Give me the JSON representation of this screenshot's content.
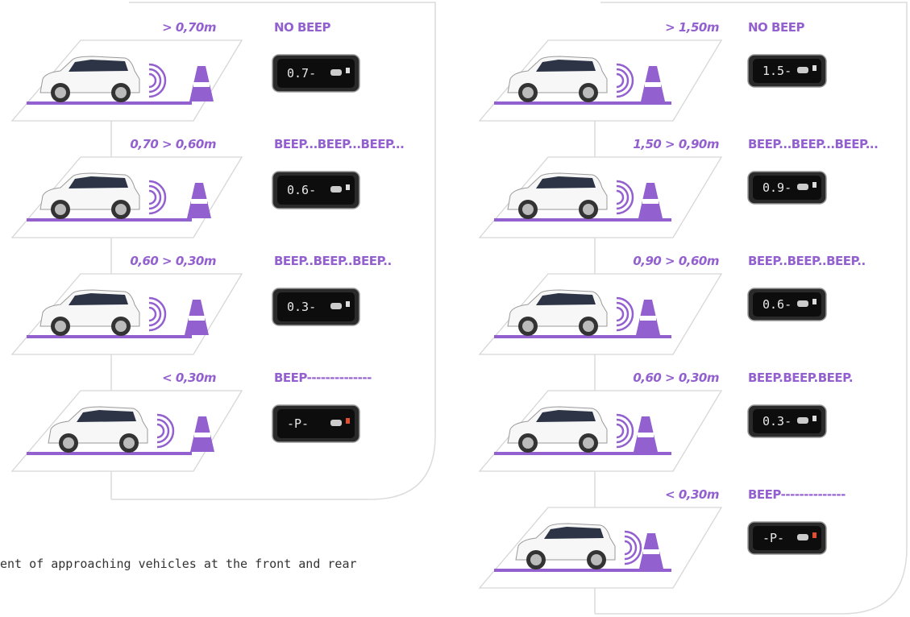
{
  "panels": [
    {
      "steps": [
        {
          "distance": "> 0,70m",
          "beep": "NO BEEP",
          "display": "0.7-"
        },
        {
          "distance": "0,70 > 0,60m",
          "beep": "BEEP...BEEP...BEEP...",
          "display": "0.6-"
        },
        {
          "distance": "0,60 > 0,30m",
          "beep": "BEEP..BEEP..BEEP..",
          "display": "0.3-"
        },
        {
          "distance": "< 0,30m",
          "beep": "BEEP--------------",
          "display": "-P-"
        }
      ]
    },
    {
      "steps": [
        {
          "distance": "> 1,50m",
          "beep": "NO BEEP",
          "display": "1.5-"
        },
        {
          "distance": "1,50 > 0,90m",
          "beep": "BEEP...BEEP...BEEP...",
          "display": "0.9-"
        },
        {
          "distance": "0,90 > 0,60m",
          "beep": "BEEP..BEEP..BEEP..",
          "display": "0.6-"
        },
        {
          "distance": "0,60 > 0,30m",
          "beep": "BEEP.BEEP.BEEP.",
          "display": "0.3-"
        },
        {
          "distance": "< 0,30m",
          "beep": "BEEP--------------",
          "display": "-P-"
        }
      ]
    }
  ],
  "note": "ent of approaching vehicles at the front and rear"
}
